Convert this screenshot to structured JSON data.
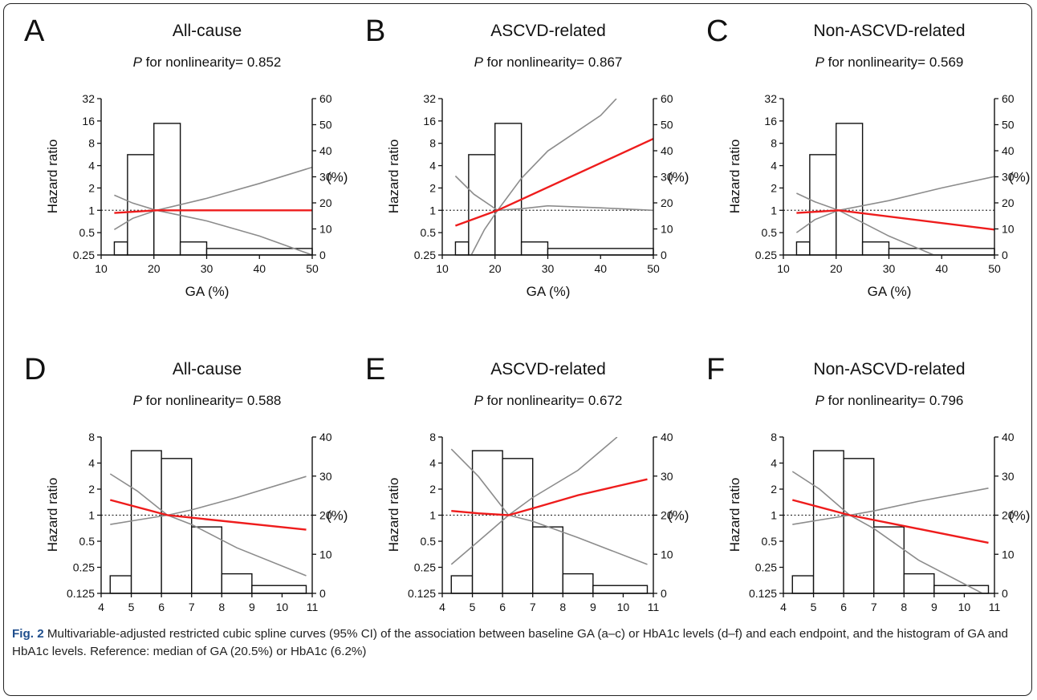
{
  "figure": {
    "caption_label": "Fig. 2",
    "caption_text": " Multivariable-adjusted restricted cubic spline curves (95% CI) of the association between baseline GA (a–c) or HbA1c levels (d–f) and each endpoint, and the histogram of GA and HbA1c levels. Reference: median of GA (20.5%) or HbA1c (6.2%)"
  },
  "chart_data": [
    {
      "type": "line",
      "panel": "A",
      "title": "All-cause",
      "p_label": "P",
      "p_text": " for nonlinearity= 0.852",
      "xlabel": "GA (%)",
      "ylabel": "Hazard ratio",
      "y2label": "(%)",
      "xlim": [
        10,
        50
      ],
      "xticks": [
        10,
        20,
        30,
        40,
        50
      ],
      "ylim": [
        0.25,
        32
      ],
      "yscale": "log2",
      "yticks": [
        0.25,
        0.5,
        1,
        2,
        4,
        8,
        16,
        32
      ],
      "ytick_labels": [
        "0.25",
        "0.5",
        "1",
        "2",
        "4",
        "8",
        "16",
        "32"
      ],
      "y2lim": [
        0,
        60
      ],
      "y2ticks": [
        0,
        10,
        20,
        30,
        40,
        50,
        60
      ],
      "reference_line": 1,
      "histogram": [
        {
          "x0": 12.5,
          "x1": 15,
          "value": 5
        },
        {
          "x0": 15,
          "x1": 20,
          "value": 38.5
        },
        {
          "x0": 20,
          "x1": 25,
          "value": 50.5
        },
        {
          "x0": 25,
          "x1": 30,
          "value": 5
        },
        {
          "x0": 30,
          "x1": 50,
          "value": 2.5
        }
      ],
      "hr": [
        [
          12.5,
          0.92
        ],
        [
          20.5,
          1
        ],
        [
          50,
          1
        ]
      ],
      "ci_lower": [
        [
          12.5,
          1.6
        ],
        [
          16,
          1.25
        ],
        [
          20.5,
          1
        ],
        [
          30,
          0.72
        ],
        [
          40,
          0.45
        ],
        [
          50,
          0.25
        ]
      ],
      "ci_upper": [
        [
          12.5,
          0.55
        ],
        [
          16,
          0.78
        ],
        [
          20.5,
          1
        ],
        [
          30,
          1.45
        ],
        [
          40,
          2.3
        ],
        [
          50,
          3.8
        ]
      ]
    },
    {
      "type": "line",
      "panel": "B",
      "title": "ASCVD-related",
      "p_label": "P",
      "p_text": " for nonlinearity= 0.867",
      "xlabel": "GA (%)",
      "ylabel": "Hazard ratio",
      "y2label": "(%)",
      "xlim": [
        10,
        50
      ],
      "xticks": [
        10,
        20,
        30,
        40,
        50
      ],
      "ylim": [
        0.25,
        32
      ],
      "yscale": "log2",
      "yticks": [
        0.25,
        0.5,
        1,
        2,
        4,
        8,
        16,
        32
      ],
      "ytick_labels": [
        "0.25",
        "0.5",
        "1",
        "2",
        "4",
        "8",
        "16",
        "32"
      ],
      "y2lim": [
        0,
        60
      ],
      "y2ticks": [
        0,
        10,
        20,
        30,
        40,
        50,
        60
      ],
      "reference_line": 1,
      "histogram": [
        {
          "x0": 12.5,
          "x1": 15,
          "value": 5
        },
        {
          "x0": 15,
          "x1": 20,
          "value": 38.5
        },
        {
          "x0": 20,
          "x1": 25,
          "value": 50.5
        },
        {
          "x0": 25,
          "x1": 30,
          "value": 5
        },
        {
          "x0": 30,
          "x1": 50,
          "value": 2.5
        }
      ],
      "hr": [
        [
          12.5,
          0.62
        ],
        [
          20.5,
          1
        ],
        [
          50,
          9.2
        ]
      ],
      "ci_lower": [
        [
          12.5,
          2.9
        ],
        [
          16,
          1.65
        ],
        [
          20.5,
          1
        ],
        [
          25,
          1.05
        ],
        [
          30,
          1.15
        ],
        [
          40,
          1.08
        ],
        [
          50,
          1
        ]
      ],
      "ci_upper": [
        [
          15.5,
          0.25
        ],
        [
          18,
          0.55
        ],
        [
          20.5,
          1
        ],
        [
          25,
          2.7
        ],
        [
          30,
          6.3
        ],
        [
          40,
          19
        ],
        [
          43,
          32
        ]
      ]
    },
    {
      "type": "line",
      "panel": "C",
      "title": "Non-ASCVD-related",
      "p_label": "P",
      "p_text": " for nonlinearity= 0.569",
      "xlabel": "GA (%)",
      "ylabel": "Hazard ratio",
      "y2label": "(%)",
      "xlim": [
        10,
        50
      ],
      "xticks": [
        10,
        20,
        30,
        40,
        50
      ],
      "ylim": [
        0.25,
        32
      ],
      "yscale": "log2",
      "yticks": [
        0.25,
        0.5,
        1,
        2,
        4,
        8,
        16,
        32
      ],
      "ytick_labels": [
        "0.25",
        "0.5",
        "1",
        "2",
        "4",
        "8",
        "16",
        "32"
      ],
      "y2lim": [
        0,
        60
      ],
      "y2ticks": [
        0,
        10,
        20,
        30,
        40,
        50,
        60
      ],
      "reference_line": 1,
      "histogram": [
        {
          "x0": 12.5,
          "x1": 15,
          "value": 5
        },
        {
          "x0": 15,
          "x1": 20,
          "value": 38.5
        },
        {
          "x0": 20,
          "x1": 25,
          "value": 50.5
        },
        {
          "x0": 25,
          "x1": 30,
          "value": 5
        },
        {
          "x0": 30,
          "x1": 50,
          "value": 2.5
        }
      ],
      "hr": [
        [
          12.5,
          0.92
        ],
        [
          20.5,
          1
        ],
        [
          50,
          0.55
        ]
      ],
      "ci_lower": [
        [
          12.5,
          1.7
        ],
        [
          16,
          1.3
        ],
        [
          20.5,
          1
        ],
        [
          30,
          0.45
        ],
        [
          38.5,
          0.25
        ]
      ],
      "ci_upper": [
        [
          12.5,
          0.5
        ],
        [
          16,
          0.75
        ],
        [
          20.5,
          1
        ],
        [
          30,
          1.35
        ],
        [
          40,
          2
        ],
        [
          50,
          2.85
        ]
      ]
    },
    {
      "type": "line",
      "panel": "D",
      "title": "All-cause",
      "p_label": "P",
      "p_text": " for nonlinearity= 0.588",
      "xlabel": "HbA1c (%)",
      "ylabel": "Hazard ratio",
      "y2label": "(%)",
      "xlim": [
        4,
        11
      ],
      "xticks": [
        4,
        5,
        6,
        7,
        8,
        9,
        10,
        11
      ],
      "ylim": [
        0.125,
        8
      ],
      "yscale": "log2",
      "yticks": [
        0.125,
        0.25,
        0.5,
        1,
        2,
        4,
        8
      ],
      "ytick_labels": [
        "0.125",
        "0.25",
        "0.5",
        "1",
        "2",
        "4",
        "8"
      ],
      "y2lim": [
        0,
        40
      ],
      "y2ticks": [
        0,
        10,
        20,
        30,
        40
      ],
      "reference_line": 1,
      "histogram": [
        {
          "x0": 4.3,
          "x1": 5,
          "value": 4.5
        },
        {
          "x0": 5,
          "x1": 6,
          "value": 36.5
        },
        {
          "x0": 6,
          "x1": 7,
          "value": 34.5
        },
        {
          "x0": 7,
          "x1": 8,
          "value": 17
        },
        {
          "x0": 8,
          "x1": 9,
          "value": 5
        },
        {
          "x0": 9,
          "x1": 10.8,
          "value": 2
        }
      ],
      "hr": [
        [
          4.3,
          1.5
        ],
        [
          6.2,
          1
        ],
        [
          10.8,
          0.68
        ]
      ],
      "ci_lower": [
        [
          4.3,
          3
        ],
        [
          5.2,
          1.9
        ],
        [
          6.2,
          1
        ],
        [
          7,
          0.78
        ],
        [
          8.5,
          0.42
        ],
        [
          10.8,
          0.2
        ]
      ],
      "ci_upper": [
        [
          4.3,
          0.78
        ],
        [
          5.2,
          0.88
        ],
        [
          6.2,
          1
        ],
        [
          7,
          1.15
        ],
        [
          8.5,
          1.6
        ],
        [
          10.8,
          2.8
        ]
      ]
    },
    {
      "type": "line",
      "panel": "E",
      "title": "ASCVD-related",
      "p_label": "P",
      "p_text": " for nonlinearity= 0.672",
      "xlabel": "HbA1c (%)",
      "ylabel": "Hazard ratio",
      "y2label": "(%)",
      "xlim": [
        4,
        11
      ],
      "xticks": [
        4,
        5,
        6,
        7,
        8,
        9,
        10,
        11
      ],
      "ylim": [
        0.125,
        8
      ],
      "yscale": "log2",
      "yticks": [
        0.125,
        0.25,
        0.5,
        1,
        2,
        4,
        8
      ],
      "ytick_labels": [
        "0.125",
        "0.25",
        "0.5",
        "1",
        "2",
        "4",
        "8"
      ],
      "y2lim": [
        0,
        40
      ],
      "y2ticks": [
        0,
        10,
        20,
        30,
        40
      ],
      "reference_line": 1,
      "histogram": [
        {
          "x0": 4.3,
          "x1": 5,
          "value": 4.5
        },
        {
          "x0": 5,
          "x1": 6,
          "value": 36.5
        },
        {
          "x0": 6,
          "x1": 7,
          "value": 34.5
        },
        {
          "x0": 7,
          "x1": 8,
          "value": 17
        },
        {
          "x0": 8,
          "x1": 9,
          "value": 5
        },
        {
          "x0": 9,
          "x1": 10.8,
          "value": 2
        }
      ],
      "hr": [
        [
          4.3,
          1.12
        ],
        [
          5.2,
          1.05
        ],
        [
          6.2,
          1
        ],
        [
          7,
          1.2
        ],
        [
          8.5,
          1.7
        ],
        [
          10.8,
          2.6
        ]
      ],
      "ci_lower": [
        [
          4.3,
          5.8
        ],
        [
          5.2,
          2.8
        ],
        [
          6.2,
          1
        ],
        [
          7,
          0.85
        ],
        [
          8.5,
          0.55
        ],
        [
          10.8,
          0.27
        ]
      ],
      "ci_upper": [
        [
          4.3,
          0.27
        ],
        [
          5.2,
          0.5
        ],
        [
          6.2,
          1
        ],
        [
          7,
          1.6
        ],
        [
          8.5,
          3.3
        ],
        [
          9.8,
          8
        ]
      ]
    },
    {
      "type": "line",
      "panel": "F",
      "title": "Non-ASCVD-related",
      "p_label": "P",
      "p_text": " for nonlinearity= 0.796",
      "xlabel": "HbA1c (%)",
      "ylabel": "Hazard ratio",
      "y2label": "(%)",
      "xlim": [
        4,
        11
      ],
      "xticks": [
        4,
        5,
        6,
        7,
        8,
        9,
        10,
        11
      ],
      "ylim": [
        0.125,
        8
      ],
      "yscale": "log2",
      "yticks": [
        0.125,
        0.25,
        0.5,
        1,
        2,
        4,
        8
      ],
      "ytick_labels": [
        "0.125",
        "0.25",
        "0.5",
        "1",
        "2",
        "4",
        "8"
      ],
      "y2lim": [
        0,
        40
      ],
      "y2ticks": [
        0,
        10,
        20,
        30,
        40
      ],
      "reference_line": 1,
      "histogram": [
        {
          "x0": 4.3,
          "x1": 5,
          "value": 4.5
        },
        {
          "x0": 5,
          "x1": 6,
          "value": 36.5
        },
        {
          "x0": 6,
          "x1": 7,
          "value": 34.5
        },
        {
          "x0": 7,
          "x1": 8,
          "value": 17
        },
        {
          "x0": 8,
          "x1": 9,
          "value": 5
        },
        {
          "x0": 9,
          "x1": 10.8,
          "value": 2
        }
      ],
      "hr": [
        [
          4.3,
          1.5
        ],
        [
          6.2,
          1
        ],
        [
          10.8,
          0.48
        ]
      ],
      "ci_lower": [
        [
          4.3,
          3.2
        ],
        [
          5.2,
          2
        ],
        [
          6.2,
          1
        ],
        [
          7,
          0.7
        ],
        [
          8.5,
          0.3
        ],
        [
          10.6,
          0.125
        ]
      ],
      "ci_upper": [
        [
          4.3,
          0.78
        ],
        [
          5.2,
          0.88
        ],
        [
          6.2,
          1
        ],
        [
          7,
          1.12
        ],
        [
          8.5,
          1.45
        ],
        [
          10.8,
          2.05
        ]
      ]
    }
  ]
}
